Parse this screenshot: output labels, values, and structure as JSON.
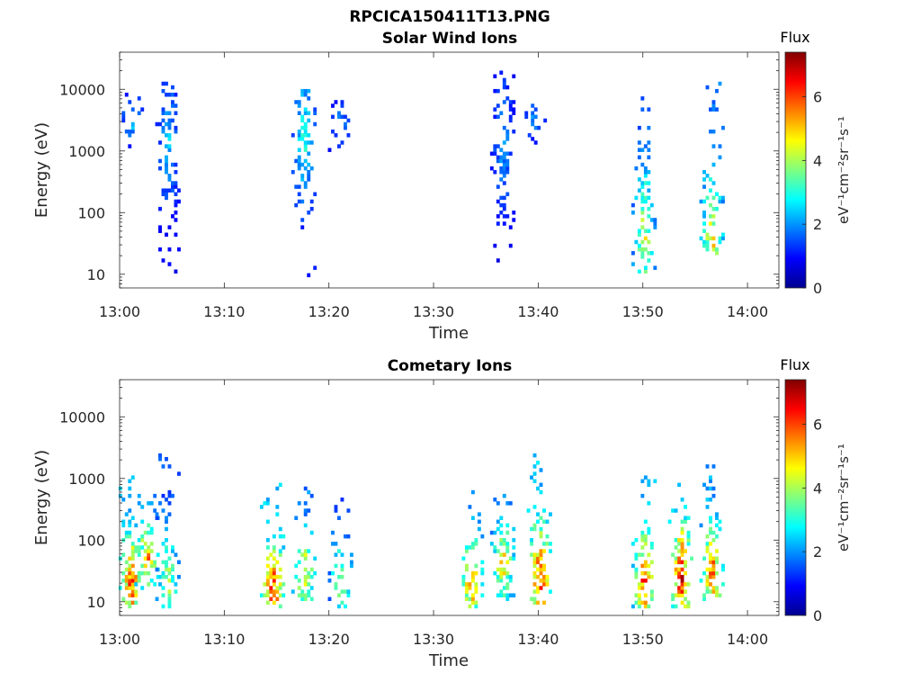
{
  "figure": {
    "title": "RPCICA150411T13.PNG"
  },
  "chart_data": [
    {
      "type": "heatmap",
      "title": "Solar Wind Ions",
      "xlabel": "Time",
      "ylabel": "Energy (eV)",
      "y_scale": "log",
      "xlim_minutes": [
        0,
        63
      ],
      "x_ticks": [
        "13:00",
        "13:10",
        "13:20",
        "13:30",
        "13:40",
        "13:50",
        "14:00"
      ],
      "ylim": [
        6,
        40000
      ],
      "y_ticks": [
        10,
        100,
        1000,
        10000
      ],
      "y_tick_labels": [
        "10",
        "100",
        "1000",
        "10000"
      ],
      "colorbar": {
        "label": "Flux",
        "unit": "eV⁻¹cm⁻²sr⁻¹s⁻¹",
        "range": [
          0,
          7.4
        ],
        "ticks": [
          0,
          2,
          4,
          6
        ],
        "colormap": "jet"
      },
      "bursts": [
        {
          "time": "13:01",
          "t_minutes": 1.0,
          "e_min": 800,
          "e_max": 9000,
          "peak_energy": 3000,
          "peak_flux": 2.8,
          "density": 0.25
        },
        {
          "time": "13:04.5",
          "t_minutes": 4.5,
          "e_min": 8,
          "e_max": 14000,
          "peak_energy": 1500,
          "peak_flux": 2.6,
          "density": 0.55
        },
        {
          "time": "13:17.5",
          "t_minutes": 17.5,
          "e_min": 7,
          "e_max": 9000,
          "peak_energy": 1500,
          "peak_flux": 3.4,
          "density": 0.6
        },
        {
          "time": "13:21",
          "t_minutes": 21.0,
          "e_min": 500,
          "e_max": 8000,
          "peak_energy": 2500,
          "peak_flux": 2.3,
          "density": 0.3
        },
        {
          "time": "13:36.5",
          "t_minutes": 36.5,
          "e_min": 7,
          "e_max": 18000,
          "peak_energy": 1200,
          "peak_flux": 2.4,
          "density": 0.6
        },
        {
          "time": "13:39.5",
          "t_minutes": 39.5,
          "e_min": 1000,
          "e_max": 8000,
          "peak_energy": 3000,
          "peak_flux": 2.4,
          "density": 0.3
        },
        {
          "time": "13:50",
          "t_minutes": 50.0,
          "e_min": 10,
          "e_max": 12000,
          "peak_energy": 40,
          "peak_flux": 4.8,
          "density": 0.55
        },
        {
          "time": "13:56.5",
          "t_minutes": 56.5,
          "e_min": 20,
          "e_max": 15000,
          "peak_energy": 35,
          "peak_flux": 5.3,
          "density": 0.55
        }
      ]
    },
    {
      "type": "heatmap",
      "title": "Cometary Ions",
      "xlabel": "Time",
      "ylabel": "Energy (eV)",
      "y_scale": "log",
      "xlim_minutes": [
        0,
        63
      ],
      "x_ticks": [
        "13:00",
        "13:10",
        "13:20",
        "13:30",
        "13:40",
        "13:50",
        "14:00"
      ],
      "ylim": [
        6,
        40000
      ],
      "y_ticks": [
        10,
        100,
        1000,
        10000
      ],
      "y_tick_labels": [
        "10",
        "100",
        "1000",
        "10000"
      ],
      "colorbar": {
        "label": "Flux",
        "unit": "eV⁻¹cm⁻²sr⁻¹s⁻¹",
        "range": [
          0,
          7.4
        ],
        "ticks": [
          0,
          2,
          4,
          6
        ],
        "colormap": "jet"
      },
      "bursts": [
        {
          "time": "13:01",
          "t_minutes": 1.0,
          "e_min": 7,
          "e_max": 1000,
          "peak_energy": 20,
          "peak_flux": 6.8,
          "density": 0.75
        },
        {
          "time": "13:02.5",
          "t_minutes": 2.5,
          "e_min": 15,
          "e_max": 500,
          "peak_energy": 50,
          "peak_flux": 6.3,
          "density": 0.7
        },
        {
          "time": "13:04.5",
          "t_minutes": 4.5,
          "e_min": 7,
          "e_max": 3000,
          "peak_energy": 20,
          "peak_flux": 4.6,
          "density": 0.5
        },
        {
          "time": "13:14.5",
          "t_minutes": 14.5,
          "e_min": 7,
          "e_max": 800,
          "peak_energy": 15,
          "peak_flux": 7.1,
          "density": 0.75
        },
        {
          "time": "13:17.5",
          "t_minutes": 17.5,
          "e_min": 10,
          "e_max": 800,
          "peak_energy": 25,
          "peak_flux": 5.6,
          "density": 0.6
        },
        {
          "time": "13:21",
          "t_minutes": 21.0,
          "e_min": 7,
          "e_max": 500,
          "peak_energy": 20,
          "peak_flux": 4.6,
          "density": 0.45
        },
        {
          "time": "13:33.5",
          "t_minutes": 33.5,
          "e_min": 7,
          "e_max": 600,
          "peak_energy": 20,
          "peak_flux": 6.3,
          "density": 0.65
        },
        {
          "time": "13:36.5",
          "t_minutes": 36.5,
          "e_min": 10,
          "e_max": 700,
          "peak_energy": 40,
          "peak_flux": 5.6,
          "density": 0.6
        },
        {
          "time": "13:40",
          "t_minutes": 40.0,
          "e_min": 7,
          "e_max": 2500,
          "peak_energy": 20,
          "peak_flux": 7.1,
          "density": 0.7
        },
        {
          "time": "13:50",
          "t_minutes": 50.0,
          "e_min": 7,
          "e_max": 1000,
          "peak_energy": 20,
          "peak_flux": 6.8,
          "density": 0.7
        },
        {
          "time": "13:53.5",
          "t_minutes": 53.5,
          "e_min": 7,
          "e_max": 1500,
          "peak_energy": 25,
          "peak_flux": 7.2,
          "density": 0.75
        },
        {
          "time": "13:56.5",
          "t_minutes": 56.5,
          "e_min": 10,
          "e_max": 1500,
          "peak_energy": 30,
          "peak_flux": 6.5,
          "density": 0.65
        }
      ]
    }
  ]
}
